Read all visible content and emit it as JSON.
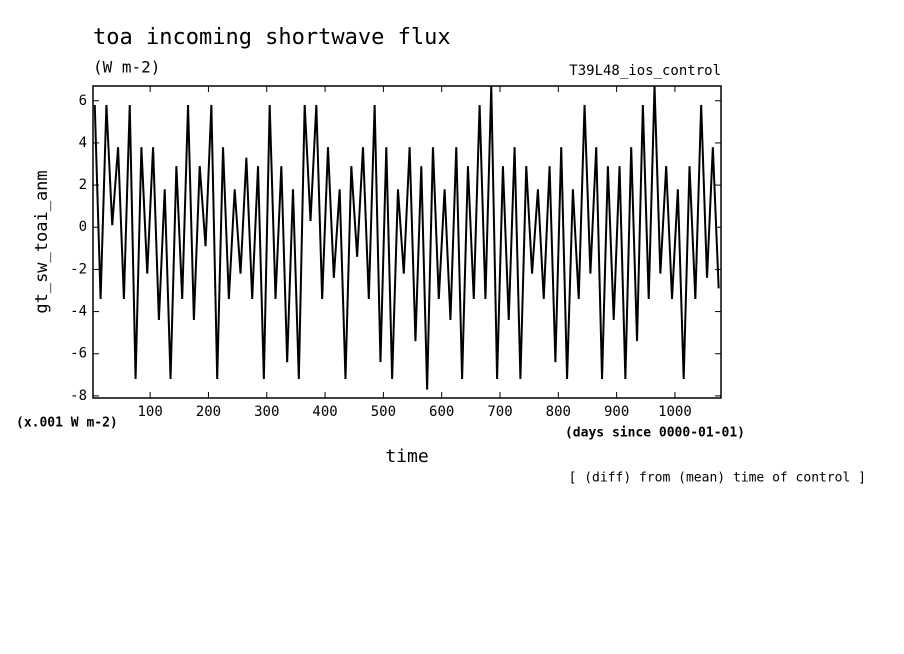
{
  "chart_data": {
    "type": "line",
    "title": "toa incoming shortwave flux",
    "subtitle": "(W m-2)",
    "run_label": "T39L48_ios_control",
    "ylabel": "gt_sw_toai_anm",
    "yunits": "(x.001 W m-2)",
    "xlabel": "time",
    "xunits": "(days since 0000-01-01)",
    "note": "[ (diff) from (mean) time of control ]",
    "xlim": [
      2,
      1079
    ],
    "ylim": [
      -8.1,
      6.7
    ],
    "xticks": [
      100,
      200,
      300,
      400,
      500,
      600,
      700,
      800,
      900,
      1000
    ],
    "yticks": [
      -8,
      -6,
      -4,
      -2,
      0,
      2,
      4,
      6
    ],
    "x": [
      5,
      15,
      25,
      35,
      45,
      55,
      65,
      75,
      85,
      95,
      105,
      115,
      125,
      135,
      145,
      155,
      165,
      175,
      185,
      195,
      205,
      215,
      225,
      235,
      245,
      255,
      265,
      275,
      285,
      295,
      305,
      315,
      325,
      335,
      345,
      355,
      365,
      375,
      385,
      395,
      405,
      415,
      425,
      435,
      445,
      455,
      465,
      475,
      485,
      495,
      505,
      515,
      525,
      535,
      545,
      555,
      565,
      575,
      585,
      595,
      605,
      615,
      625,
      635,
      645,
      655,
      665,
      675,
      685,
      695,
      705,
      715,
      725,
      735,
      745,
      755,
      765,
      775,
      785,
      795,
      805,
      815,
      825,
      835,
      845,
      855,
      865,
      875,
      885,
      895,
      905,
      915,
      925,
      935,
      945,
      955,
      965,
      975,
      985,
      995,
      1005,
      1015,
      1025,
      1035,
      1045,
      1055,
      1065,
      1075
    ],
    "series": [
      {
        "name": "gt_sw_toai_anm",
        "color": "#000000",
        "values": [
          5.8,
          -3.4,
          5.8,
          0.1,
          3.8,
          -3.4,
          5.8,
          -7.2,
          3.8,
          -2.2,
          3.8,
          -4.4,
          1.8,
          -7.2,
          2.9,
          -3.4,
          5.8,
          -4.4,
          2.9,
          -0.9,
          5.8,
          -7.2,
          3.8,
          -3.4,
          1.8,
          -2.2,
          3.3,
          -3.4,
          2.9,
          -7.2,
          5.8,
          -3.4,
          2.9,
          -6.4,
          1.8,
          -7.2,
          5.8,
          0.3,
          5.8,
          -3.4,
          3.8,
          -2.4,
          1.8,
          -7.2,
          2.9,
          -1.4,
          3.8,
          -3.4,
          5.8,
          -6.4,
          3.8,
          -7.2,
          1.8,
          -2.2,
          3.8,
          -5.4,
          2.9,
          -7.7,
          3.8,
          -3.4,
          1.8,
          -4.4,
          3.8,
          -7.2,
          2.9,
          -3.4,
          5.8,
          -3.4,
          6.7,
          -7.2,
          2.9,
          -4.4,
          3.8,
          -7.2,
          2.9,
          -2.2,
          1.8,
          -3.4,
          2.9,
          -6.4,
          3.8,
          -7.2,
          1.8,
          -3.4,
          5.8,
          -2.2,
          3.8,
          -7.2,
          2.9,
          -4.4,
          2.9,
          -7.2,
          3.8,
          -5.4,
          5.8,
          -3.4,
          6.7,
          -2.2,
          2.9,
          -3.4,
          1.8,
          -7.2,
          2.9,
          -3.4,
          5.8,
          -2.4,
          3.8,
          -2.9
        ]
      }
    ]
  }
}
